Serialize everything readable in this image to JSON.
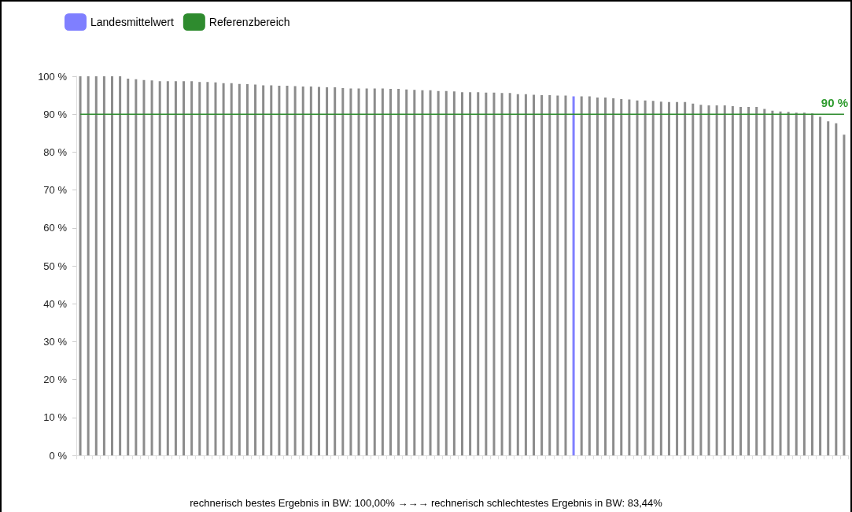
{
  "chart_data": {
    "type": "bar",
    "categories": [
      null,
      null,
      null,
      null,
      null,
      null,
      null,
      null,
      null,
      null,
      null,
      null,
      null,
      null,
      null,
      null,
      null,
      null,
      null,
      null,
      null,
      null,
      null,
      null,
      null,
      null,
      null,
      null,
      null,
      null,
      null,
      null,
      null,
      null,
      null,
      null,
      null,
      null,
      null,
      null,
      null,
      null,
      null,
      null,
      null,
      null,
      null,
      null,
      null,
      null,
      null,
      null,
      null,
      null,
      null,
      null,
      null,
      null,
      null,
      null,
      null,
      null,
      null,
      null,
      null,
      null,
      null,
      null,
      null,
      null,
      null,
      null,
      null,
      null,
      null,
      null,
      null,
      null,
      null,
      null,
      null,
      null,
      null,
      null,
      null,
      null,
      null,
      null,
      null,
      null,
      null,
      null,
      null,
      null,
      null,
      null,
      null
    ],
    "series": [
      {
        "color": "#8c8c8c",
        "values": [
          100,
          100,
          100,
          100,
          100,
          100,
          99.4,
          99.2,
          99.0,
          98.9,
          98.7,
          98.7,
          98.7,
          98.7,
          98.7,
          98.5,
          98.5,
          98.4,
          98.2,
          98.2,
          98.0,
          97.9,
          97.8,
          97.6,
          97.6,
          97.5,
          97.5,
          97.4,
          97.3,
          97.3,
          97.2,
          97.1,
          97.1,
          96.9,
          96.8,
          96.8,
          96.8,
          96.8,
          96.8,
          96.7,
          96.7,
          96.5,
          96.4,
          96.3,
          96.3,
          96.1,
          96.1,
          96.0,
          95.8,
          95.8,
          95.8,
          95.7,
          95.7,
          95.6,
          95.6,
          95.3,
          95.3,
          95.1,
          95.0,
          95.0,
          94.9,
          94.9,
          null,
          94.7,
          94.7,
          94.4,
          94.4,
          94.2,
          94.0,
          93.9,
          93.6,
          93.6,
          93.5,
          93.3,
          93.2,
          93.2,
          93.2,
          92.8,
          92.5,
          92.3,
          92.3,
          92.3,
          92.1,
          91.9,
          91.9,
          91.9,
          91.4,
          90.9,
          90.7,
          90.6,
          90.4,
          90.4,
          90.2,
          89.3,
          88.1,
          87.6,
          84.6
        ]
      },
      {
        "name": "Landesmittelwert",
        "color": "#7f7fff",
        "values": [
          null,
          null,
          null,
          null,
          null,
          null,
          null,
          null,
          null,
          null,
          null,
          null,
          null,
          null,
          null,
          null,
          null,
          null,
          null,
          null,
          null,
          null,
          null,
          null,
          null,
          null,
          null,
          null,
          null,
          null,
          null,
          null,
          null,
          null,
          null,
          null,
          null,
          null,
          null,
          null,
          null,
          null,
          null,
          null,
          null,
          null,
          null,
          null,
          null,
          null,
          null,
          null,
          null,
          null,
          null,
          null,
          null,
          null,
          null,
          null,
          null,
          null,
          94.7,
          null,
          null,
          null,
          null,
          null,
          null,
          null,
          null,
          null,
          null,
          null,
          null,
          null,
          null,
          null,
          null,
          null,
          null,
          null,
          null,
          null,
          null,
          null,
          null,
          null,
          null,
          null,
          null,
          null,
          null,
          null,
          null,
          null,
          null
        ]
      },
      {
        "name": "Referenzbereich",
        "type": "line",
        "color": "#2e8b2e",
        "values": [
          90,
          90,
          90,
          90,
          90,
          90,
          90,
          90,
          90,
          90,
          90,
          90,
          90,
          90,
          90,
          90,
          90,
          90,
          90,
          90,
          90,
          90,
          90,
          90,
          90,
          90,
          90,
          90,
          90,
          90,
          90,
          90,
          90,
          90,
          90,
          90,
          90,
          90,
          90,
          90,
          90,
          90,
          90,
          90,
          90,
          90,
          90,
          90,
          90,
          90,
          90,
          90,
          90,
          90,
          90,
          90,
          90,
          90,
          90,
          90,
          90,
          90,
          90,
          90,
          90,
          90,
          90,
          90,
          90,
          90,
          90,
          90,
          90,
          90,
          90,
          90,
          90,
          90,
          90,
          90,
          90,
          90,
          90,
          90,
          90,
          90,
          90,
          90,
          90,
          90,
          90,
          90,
          90,
          90,
          90,
          90,
          90
        ]
      }
    ],
    "ylim": [
      0,
      100
    ],
    "yticks": [
      {
        "value": 0,
        "label": "0 %"
      },
      {
        "value": 10,
        "label": "10 %"
      },
      {
        "value": 20,
        "label": "20 %"
      },
      {
        "value": 30,
        "label": "30 %"
      },
      {
        "value": 40,
        "label": "40 %"
      },
      {
        "value": 50,
        "label": "50 %"
      },
      {
        "value": 60,
        "label": "60 %"
      },
      {
        "value": 70,
        "label": "70 %"
      },
      {
        "value": 80,
        "label": "80 %"
      },
      {
        "value": 90,
        "label": "90 %"
      },
      {
        "value": 100,
        "label": "100 %"
      }
    ],
    "grid": false,
    "legend": "top left",
    "marker": "none",
    "annotations": [
      {
        "text": "90 %",
        "y": 90
      },
      "rechnerisch bestes Ergebnis in BW: 100,00% →→→ rechnerisch schlechtestes Ergebnis in BW: 83,44%"
    ]
  }
}
